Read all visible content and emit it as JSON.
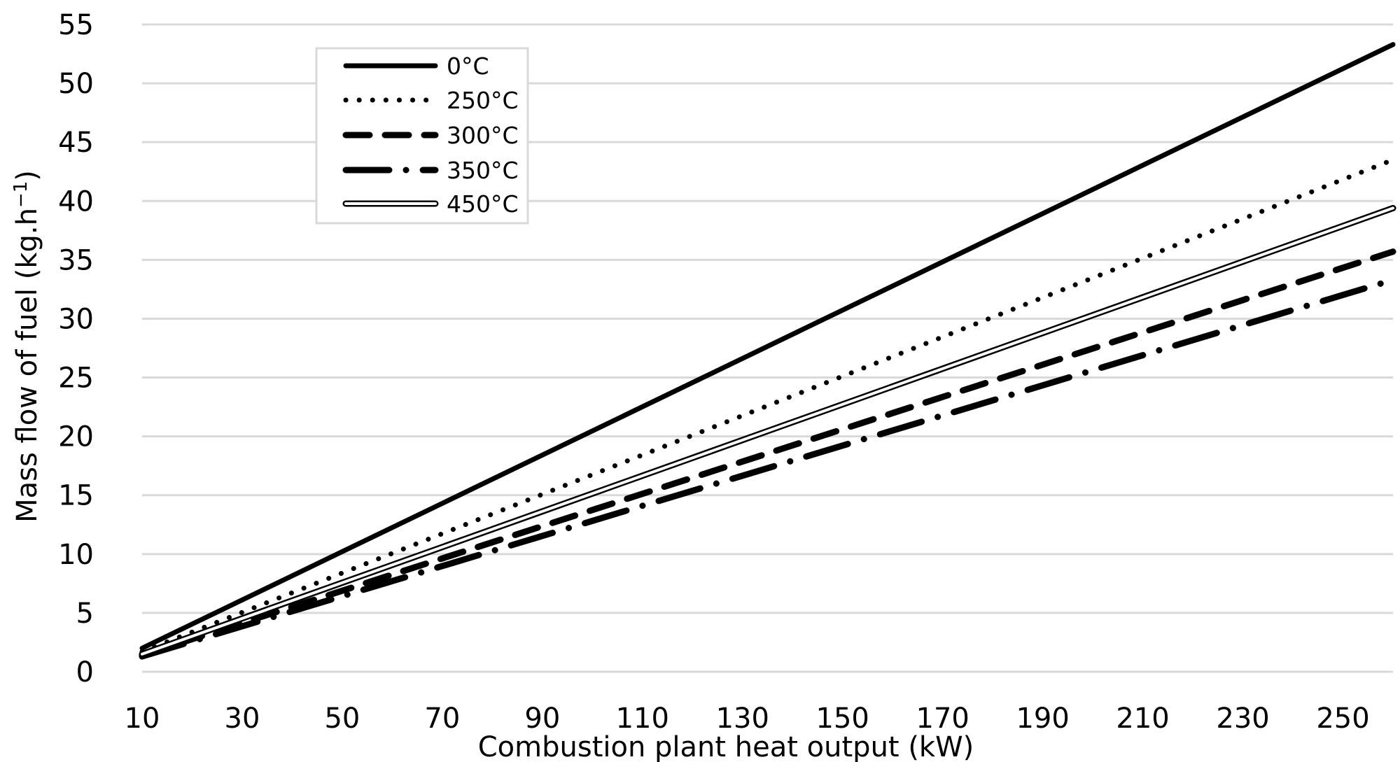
{
  "chart_data": {
    "type": "line",
    "title": "",
    "xlabel": "Combustion plant heat output (kW)",
    "ylabel": "Mass flow of fuel (kg.h",
    "ylabel_sup": "−1",
    "ylabel_close": ")",
    "xlim": [
      10,
      260
    ],
    "ylim": [
      0,
      55
    ],
    "xticks": [
      "10",
      "30",
      "50",
      "70",
      "90",
      "110",
      "130",
      "150",
      "170",
      "190",
      "210",
      "230",
      "250"
    ],
    "yticks": [
      "0",
      "5",
      "10",
      "15",
      "20",
      "25",
      "30",
      "35",
      "40",
      "45",
      "50",
      "55"
    ],
    "grid": true,
    "legend_position": "top-left",
    "series": [
      {
        "name": "0°C",
        "style": "solid",
        "x": [
          10,
          260
        ],
        "y": [
          2.0,
          53.3
        ]
      },
      {
        "name": "250°C",
        "style": "dotted",
        "x": [
          10,
          260
        ],
        "y": [
          1.7,
          43.5
        ]
      },
      {
        "name": "300°C",
        "style": "dashed",
        "x": [
          10,
          260
        ],
        "y": [
          1.4,
          35.7
        ]
      },
      {
        "name": "350°C",
        "style": "dashdot",
        "x": [
          10,
          260
        ],
        "y": [
          1.3,
          33.3
        ]
      },
      {
        "name": "450°C",
        "style": "double",
        "x": [
          10,
          260
        ],
        "y": [
          1.5,
          39.4
        ]
      }
    ],
    "colors": {
      "line": "#000000",
      "grid": "#d9d9d9",
      "background": "#ffffff"
    }
  }
}
